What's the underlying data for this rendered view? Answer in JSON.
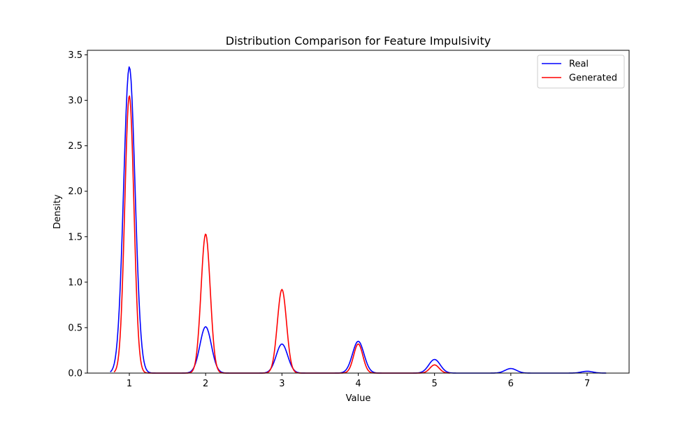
{
  "chart_data": {
    "type": "line",
    "title": "Distribution Comparison for Feature Impulsivity",
    "xlabel": "Value",
    "ylabel": "Density",
    "xlim": [
      0.45,
      7.55
    ],
    "ylim": [
      0,
      3.55
    ],
    "xticks": [
      1,
      2,
      3,
      4,
      5,
      6,
      7
    ],
    "yticks": [
      0.0,
      0.5,
      1.0,
      1.5,
      2.0,
      2.5,
      3.0,
      3.5
    ],
    "ytick_labels": [
      "0.0",
      "0.5",
      "1.0",
      "1.5",
      "2.0",
      "2.5",
      "3.0",
      "3.5"
    ],
    "grid": false,
    "legend_position": "top-right",
    "series": [
      {
        "name": "Real",
        "color": "#0000ff",
        "x_range": [
          0.75,
          7.25
        ],
        "bandwidth": 0.075,
        "peaks": [
          {
            "x": 1,
            "y": 3.37
          },
          {
            "x": 2,
            "y": 0.51
          },
          {
            "x": 3,
            "y": 0.32
          },
          {
            "x": 4,
            "y": 0.35
          },
          {
            "x": 5,
            "y": 0.15
          },
          {
            "x": 6,
            "y": 0.05
          },
          {
            "x": 7,
            "y": 0.02
          }
        ]
      },
      {
        "name": "Generated",
        "color": "#ff0000",
        "x_range": [
          0.8,
          5.2
        ],
        "bandwidth": 0.06,
        "peaks": [
          {
            "x": 1,
            "y": 3.05
          },
          {
            "x": 2,
            "y": 1.53
          },
          {
            "x": 3,
            "y": 0.92
          },
          {
            "x": 4,
            "y": 0.32
          },
          {
            "x": 5,
            "y": 0.09
          }
        ]
      }
    ]
  }
}
